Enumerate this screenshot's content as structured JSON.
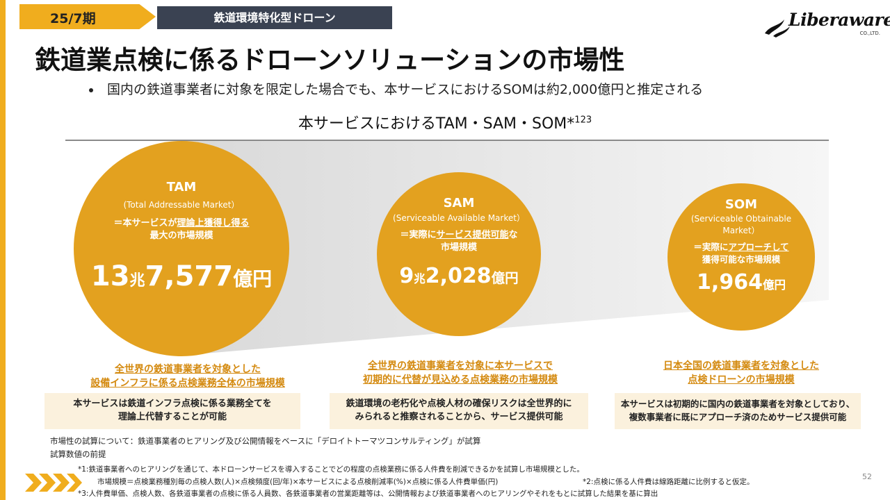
{
  "header": {
    "period": "25/7期",
    "category": "鉄道環境特化型ドローン",
    "logo_text": "Liberaware",
    "logo_sub": "CO.,LTD."
  },
  "title": "鉄道業点検に係るドローンソリューションの市場性",
  "bullet": "国内の鉄道事業者に対象を限定した場合でも、本サービスにおけるSOMは約2,000億円と推定される",
  "section_title": "本サービスにおけるTAM・SAM・SOM*",
  "section_title_sup": "123",
  "markets": {
    "tam": {
      "name": "TAM",
      "full": "(Total Addressable Market）",
      "desc_prefix": "＝本サービスが",
      "desc_underline": "理論上獲得し得る",
      "desc_line2": "最大の市場規模",
      "value_a": "13",
      "unit_a": "兆",
      "value_b": "7,577",
      "unit_b": "億円",
      "target_line1": "全世界の鉄道事業者を対象とした",
      "target_line2": "設備インフラに係る点検業務全体の市場規模",
      "note_line1": "本サービスは鉄道インフラ点検に係る業務全てを",
      "note_line2": "理論上代替することが可能"
    },
    "sam": {
      "name": "SAM",
      "full": "(Serviceable Available Market）",
      "desc_prefix": "＝実際に",
      "desc_underline": "サービス提供可能",
      "desc_suffix": "な",
      "desc_line2": "市場規模",
      "value_a": "9",
      "unit_a": "兆",
      "value_b": "2,028",
      "unit_b": "億円",
      "target_line1": "全世界の鉄道事業者を対象に本サービスで",
      "target_line2": "初期的に代替が見込める点検業務の市場規模",
      "note_line1": "鉄道環境の老朽化や点検人材の確保リスクは全世界的に",
      "note_line2": "みられると推察されることから、サービス提供可能"
    },
    "som": {
      "name": "SOM",
      "full_line1": "(Serviceable Obtainable",
      "full_line2": "Market）",
      "desc_prefix": "＝実際に",
      "desc_underline": "アプローチして",
      "desc_line2": "獲得可能な市場規模",
      "value_b": "1,964",
      "unit_b": "億円",
      "target_line1": "日本全国の鉄道事業者を対象とした",
      "target_line2": "点検ドローンの市場規模",
      "note_line1": "本サービスは初期的に国内の鉄道事業者を対象としており、",
      "note_line2": "複数事業者に既にアプローチ済のためサービス提供可能"
    }
  },
  "footnotes": {
    "estimate": "市場性の試算について：鉄道事業者のヒアリング及び公開情報をベースに「デロイトトーマツコンサルティング」が試算",
    "premise": "試算数値の前提",
    "note1": "*1:鉄道事業者へのヒアリングを通じて、本ドローンサービスを導入することでどの程度の点検業務に係る人件費を削減できるかを試算し市場規模とした。",
    "note1b": "市場規模＝点検業務種別毎の点検人数(人)×点検頻度(回/年)×本サービスによる点検削減率(%)×点検に係る人件費単価(円)",
    "note2": "*2:点検に係る人件費は線路距離に比例すると仮定。",
    "note3": "*3:人件費単価、点検人数、各鉄道事業者の点検に係る人員数、各鉄道事業者の営業距離等は、公開情報および鉄道事業者へのヒアリングやそれをもとに試算した結果を基に算出"
  },
  "page_number": "52",
  "colors": {
    "accent": "#e3a11f",
    "dark": "#3a4252",
    "target_text": "#d48a10",
    "note_bg": "#fbf1dd"
  }
}
